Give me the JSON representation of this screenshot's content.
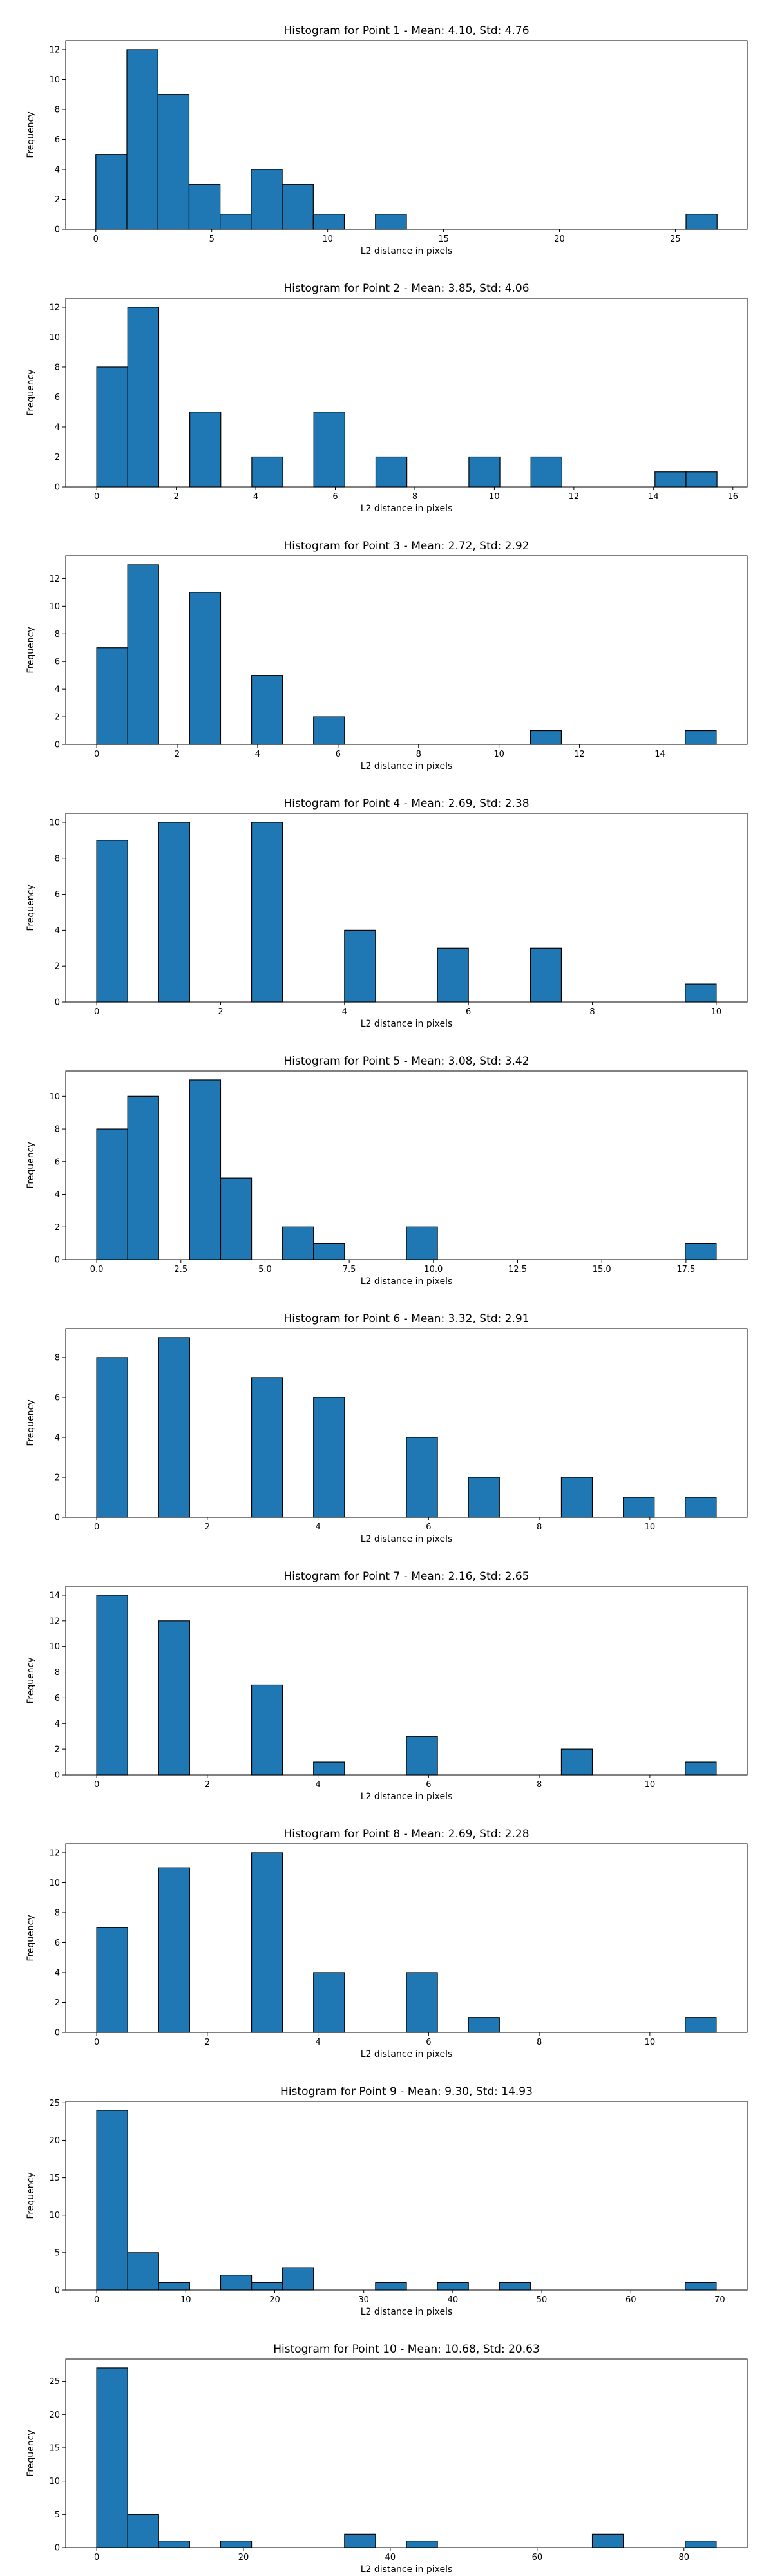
{
  "chart_data": [
    {
      "type": "bar",
      "title": "Histogram for Point 1 - Mean: 4.10, Std: 4.76",
      "xlabel": "L2 distance in pixels",
      "ylabel": "Frequency",
      "xlim": [
        -1.3,
        28.1
      ],
      "ylim": [
        0,
        12.6
      ],
      "xticks": [
        0,
        5,
        10,
        15,
        20,
        25
      ],
      "xtick_labels": [
        "0",
        "5",
        "10",
        "15",
        "20",
        "25"
      ],
      "yticks": [
        0,
        2,
        4,
        6,
        8,
        10,
        12
      ],
      "ytick_labels": [
        "0",
        "2",
        "4",
        "6",
        "8",
        "10",
        "12"
      ],
      "bin_width": 1.34,
      "bins": [
        {
          "x0": 0.0,
          "count": 5
        },
        {
          "x0": 1.34,
          "count": 12
        },
        {
          "x0": 2.68,
          "count": 9
        },
        {
          "x0": 4.02,
          "count": 3
        },
        {
          "x0": 5.36,
          "count": 1
        },
        {
          "x0": 6.7,
          "count": 4
        },
        {
          "x0": 8.04,
          "count": 3
        },
        {
          "x0": 9.38,
          "count": 1
        },
        {
          "x0": 12.06,
          "count": 1
        },
        {
          "x0": 25.46,
          "count": 1
        }
      ]
    },
    {
      "type": "bar",
      "title": "Histogram for Point 2 - Mean: 3.85, Std: 4.06",
      "xlabel": "L2 distance in pixels",
      "ylabel": "Frequency",
      "xlim": [
        -0.78,
        16.36
      ],
      "ylim": [
        0,
        12.6
      ],
      "xticks": [
        0,
        2,
        4,
        6,
        8,
        10,
        12,
        14,
        16
      ],
      "xtick_labels": [
        "0",
        "2",
        "4",
        "6",
        "8",
        "10",
        "12",
        "14",
        "16"
      ],
      "yticks": [
        0,
        2,
        4,
        6,
        8,
        10,
        12
      ],
      "ytick_labels": [
        "0",
        "2",
        "4",
        "6",
        "8",
        "10",
        "12"
      ],
      "bin_width": 0.78,
      "bins": [
        {
          "x0": 0.0,
          "count": 8
        },
        {
          "x0": 0.78,
          "count": 12
        },
        {
          "x0": 2.34,
          "count": 5
        },
        {
          "x0": 3.9,
          "count": 2
        },
        {
          "x0": 5.46,
          "count": 5
        },
        {
          "x0": 7.02,
          "count": 2
        },
        {
          "x0": 9.36,
          "count": 2
        },
        {
          "x0": 10.92,
          "count": 2
        },
        {
          "x0": 14.04,
          "count": 1
        },
        {
          "x0": 14.82,
          "count": 1
        }
      ]
    },
    {
      "type": "bar",
      "title": "Histogram for Point 3 - Mean: 2.72, Std: 2.92",
      "xlabel": "L2 distance in pixels",
      "ylabel": "Frequency",
      "xlim": [
        -0.77,
        16.17
      ],
      "ylim": [
        0,
        13.65
      ],
      "xticks": [
        0,
        2,
        4,
        6,
        8,
        10,
        12,
        14
      ],
      "xtick_labels": [
        "0",
        "2",
        "4",
        "6",
        "8",
        "10",
        "12",
        "14"
      ],
      "yticks": [
        0,
        2,
        4,
        6,
        8,
        10,
        12
      ],
      "ytick_labels": [
        "0",
        "2",
        "4",
        "6",
        "8",
        "10",
        "12"
      ],
      "bin_width": 0.77,
      "bins": [
        {
          "x0": 0.0,
          "count": 7
        },
        {
          "x0": 0.77,
          "count": 13
        },
        {
          "x0": 2.31,
          "count": 11
        },
        {
          "x0": 3.85,
          "count": 5
        },
        {
          "x0": 5.39,
          "count": 2
        },
        {
          "x0": 10.78,
          "count": 1
        },
        {
          "x0": 14.63,
          "count": 1
        }
      ]
    },
    {
      "type": "bar",
      "title": "Histogram for Point 4 - Mean: 2.69, Std: 2.38",
      "xlabel": "L2 distance in pixels",
      "ylabel": "Frequency",
      "xlim": [
        -0.5,
        10.5
      ],
      "ylim": [
        0,
        10.5
      ],
      "xticks": [
        0,
        2,
        4,
        6,
        8,
        10
      ],
      "xtick_labels": [
        "0",
        "2",
        "4",
        "6",
        "8",
        "10"
      ],
      "yticks": [
        0,
        2,
        4,
        6,
        8,
        10
      ],
      "ytick_labels": [
        "0",
        "2",
        "4",
        "6",
        "8",
        "10"
      ],
      "bin_width": 0.5,
      "bins": [
        {
          "x0": 0.0,
          "count": 9
        },
        {
          "x0": 1.0,
          "count": 10
        },
        {
          "x0": 2.5,
          "count": 10
        },
        {
          "x0": 4.0,
          "count": 4
        },
        {
          "x0": 5.5,
          "count": 3
        },
        {
          "x0": 7.0,
          "count": 3
        },
        {
          "x0": 9.5,
          "count": 1
        }
      ]
    },
    {
      "type": "bar",
      "title": "Histogram for Point 5 - Mean: 3.08, Std: 3.42",
      "xlabel": "L2 distance in pixels",
      "ylabel": "Frequency",
      "xlim": [
        -0.92,
        19.32
      ],
      "ylim": [
        0,
        11.55
      ],
      "xticks": [
        0,
        2.5,
        5,
        7.5,
        10,
        12.5,
        15,
        17.5
      ],
      "xtick_labels": [
        "0.0",
        "2.5",
        "5.0",
        "7.5",
        "10.0",
        "12.5",
        "15.0",
        "17.5"
      ],
      "yticks": [
        0,
        2,
        4,
        6,
        8,
        10
      ],
      "ytick_labels": [
        "0",
        "2",
        "4",
        "6",
        "8",
        "10"
      ],
      "bin_width": 0.92,
      "bins": [
        {
          "x0": 0.0,
          "count": 8
        },
        {
          "x0": 0.92,
          "count": 10
        },
        {
          "x0": 2.76,
          "count": 11
        },
        {
          "x0": 3.68,
          "count": 5
        },
        {
          "x0": 5.52,
          "count": 2
        },
        {
          "x0": 6.44,
          "count": 1
        },
        {
          "x0": 9.2,
          "count": 2
        },
        {
          "x0": 17.48,
          "count": 1
        }
      ]
    },
    {
      "type": "bar",
      "title": "Histogram for Point 6 - Mean: 3.32, Std: 2.91",
      "xlabel": "L2 distance in pixels",
      "ylabel": "Frequency",
      "xlim": [
        -0.56,
        11.76
      ],
      "ylim": [
        0,
        9.45
      ],
      "xticks": [
        0,
        2,
        4,
        6,
        8,
        10
      ],
      "xtick_labels": [
        "0",
        "2",
        "4",
        "6",
        "8",
        "10"
      ],
      "yticks": [
        0,
        2,
        4,
        6,
        8
      ],
      "ytick_labels": [
        "0",
        "2",
        "4",
        "6",
        "8"
      ],
      "bin_width": 0.56,
      "bins": [
        {
          "x0": 0.0,
          "count": 8
        },
        {
          "x0": 1.12,
          "count": 9
        },
        {
          "x0": 2.8,
          "count": 7
        },
        {
          "x0": 3.92,
          "count": 6
        },
        {
          "x0": 5.6,
          "count": 4
        },
        {
          "x0": 6.72,
          "count": 2
        },
        {
          "x0": 8.4,
          "count": 2
        },
        {
          "x0": 9.52,
          "count": 1
        },
        {
          "x0": 10.64,
          "count": 1
        }
      ]
    },
    {
      "type": "bar",
      "title": "Histogram for Point 7 - Mean: 2.16, Std: 2.65",
      "xlabel": "L2 distance in pixels",
      "ylabel": "Frequency",
      "xlim": [
        -0.56,
        11.76
      ],
      "ylim": [
        0,
        14.7
      ],
      "xticks": [
        0,
        2,
        4,
        6,
        8,
        10
      ],
      "xtick_labels": [
        "0",
        "2",
        "4",
        "6",
        "8",
        "10"
      ],
      "yticks": [
        0,
        2,
        4,
        6,
        8,
        10,
        12,
        14
      ],
      "ytick_labels": [
        "0",
        "2",
        "4",
        "6",
        "8",
        "10",
        "12",
        "14"
      ],
      "bin_width": 0.56,
      "bins": [
        {
          "x0": 0.0,
          "count": 14
        },
        {
          "x0": 1.12,
          "count": 12
        },
        {
          "x0": 2.8,
          "count": 7
        },
        {
          "x0": 3.92,
          "count": 1
        },
        {
          "x0": 5.6,
          "count": 3
        },
        {
          "x0": 8.4,
          "count": 2
        },
        {
          "x0": 10.64,
          "count": 1
        }
      ]
    },
    {
      "type": "bar",
      "title": "Histogram for Point 8 - Mean: 2.69, Std: 2.28",
      "xlabel": "L2 distance in pixels",
      "ylabel": "Frequency",
      "xlim": [
        -0.56,
        11.76
      ],
      "ylim": [
        0,
        12.6
      ],
      "xticks": [
        0,
        2,
        4,
        6,
        8,
        10
      ],
      "xtick_labels": [
        "0",
        "2",
        "4",
        "6",
        "8",
        "10"
      ],
      "yticks": [
        0,
        2,
        4,
        6,
        8,
        10,
        12
      ],
      "ytick_labels": [
        "0",
        "2",
        "4",
        "6",
        "8",
        "10",
        "12"
      ],
      "bin_width": 0.56,
      "bins": [
        {
          "x0": 0.0,
          "count": 7
        },
        {
          "x0": 1.12,
          "count": 11
        },
        {
          "x0": 2.8,
          "count": 12
        },
        {
          "x0": 3.92,
          "count": 4
        },
        {
          "x0": 5.6,
          "count": 4
        },
        {
          "x0": 6.72,
          "count": 1
        },
        {
          "x0": 10.64,
          "count": 1
        }
      ]
    },
    {
      "type": "bar",
      "title": "Histogram for Point 9 - Mean: 9.30, Std: 14.93",
      "xlabel": "L2 distance in pixels",
      "ylabel": "Frequency",
      "xlim": [
        -3.48,
        73.08
      ],
      "ylim": [
        0,
        25.2
      ],
      "xticks": [
        0,
        10,
        20,
        30,
        40,
        50,
        60,
        70
      ],
      "xtick_labels": [
        "0",
        "10",
        "20",
        "30",
        "40",
        "50",
        "60",
        "70"
      ],
      "yticks": [
        0,
        5,
        10,
        15,
        20,
        25
      ],
      "ytick_labels": [
        "0",
        "5",
        "10",
        "15",
        "20",
        "25"
      ],
      "bin_width": 3.48,
      "bins": [
        {
          "x0": 0.0,
          "count": 24
        },
        {
          "x0": 3.48,
          "count": 5
        },
        {
          "x0": 6.96,
          "count": 1
        },
        {
          "x0": 13.92,
          "count": 2
        },
        {
          "x0": 17.4,
          "count": 1
        },
        {
          "x0": 20.88,
          "count": 3
        },
        {
          "x0": 31.32,
          "count": 1
        },
        {
          "x0": 38.28,
          "count": 1
        },
        {
          "x0": 45.24,
          "count": 1
        },
        {
          "x0": 66.12,
          "count": 1
        }
      ]
    },
    {
      "type": "bar",
      "title": "Histogram for Point 10 - Mean: 10.68, Std: 20.63",
      "xlabel": "L2 distance in pixels",
      "ylabel": "Frequency",
      "xlim": [
        -4.22,
        88.62
      ],
      "ylim": [
        0,
        28.35
      ],
      "xticks": [
        0,
        20,
        40,
        60,
        80
      ],
      "xtick_labels": [
        "0",
        "20",
        "40",
        "60",
        "80"
      ],
      "yticks": [
        0,
        5,
        10,
        15,
        20,
        25
      ],
      "ytick_labels": [
        "0",
        "5",
        "10",
        "15",
        "20",
        "25"
      ],
      "bin_width": 4.22,
      "bins": [
        {
          "x0": 0.0,
          "count": 27
        },
        {
          "x0": 4.22,
          "count": 5
        },
        {
          "x0": 8.44,
          "count": 1
        },
        {
          "x0": 16.88,
          "count": 1
        },
        {
          "x0": 33.76,
          "count": 2
        },
        {
          "x0": 42.2,
          "count": 1
        },
        {
          "x0": 67.52,
          "count": 2
        },
        {
          "x0": 80.18,
          "count": 1
        }
      ]
    }
  ],
  "colors": {
    "bar_fill": "#1f77b4",
    "bar_edge": "#000000",
    "axis": "#000000"
  }
}
